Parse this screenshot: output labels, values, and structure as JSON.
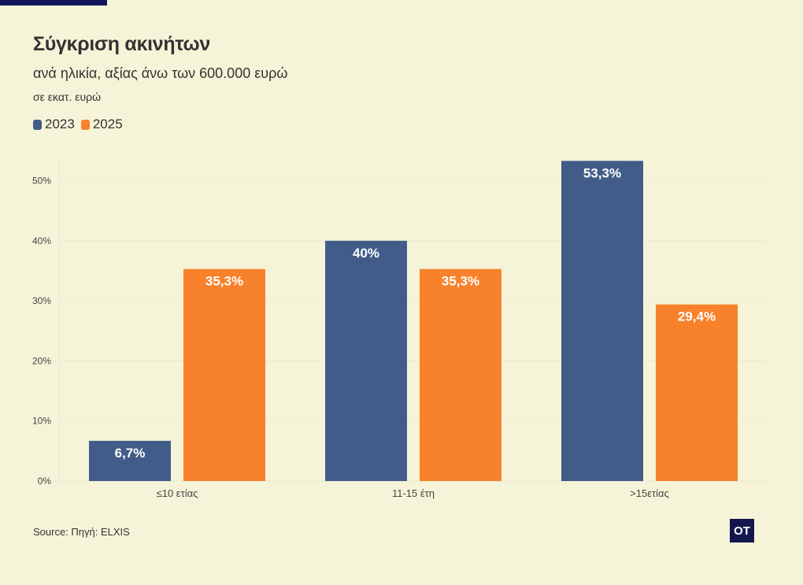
{
  "header": {
    "title": "Σύγκριση ακινήτων",
    "subtitle": "ανά ηλικία, αξίας άνω των 600.000 ευρώ",
    "unit": "σε εκατ. ευρώ"
  },
  "legend": [
    {
      "label": "2023",
      "color": "#425c8a"
    },
    {
      "label": "2025",
      "color": "#f7822b"
    }
  ],
  "chart_data": {
    "type": "bar",
    "categories": [
      "≤10 ετίας",
      "11-15 έτη",
      ">15ετίας"
    ],
    "series": [
      {
        "name": "2023",
        "color": "#425c8a",
        "values": [
          6.7,
          40,
          53.3
        ],
        "labels": [
          "6,7%",
          "40%",
          "53,3%"
        ]
      },
      {
        "name": "2025",
        "color": "#f7822b",
        "values": [
          35.3,
          35.3,
          29.4
        ],
        "labels": [
          "35,3%",
          "35,3%",
          "29,4%"
        ]
      }
    ],
    "yticks": [
      0,
      10,
      20,
      30,
      40,
      50
    ],
    "ytick_labels": [
      "0%",
      "10%",
      "20%",
      "30%",
      "40%",
      "50%"
    ],
    "ylim": [
      0,
      55
    ],
    "title": "Σύγκριση ακινήτων",
    "xlabel": "",
    "ylabel": ""
  },
  "footer": {
    "source": "Source: Πηγή: ELXIS",
    "logo_text": "OT"
  }
}
